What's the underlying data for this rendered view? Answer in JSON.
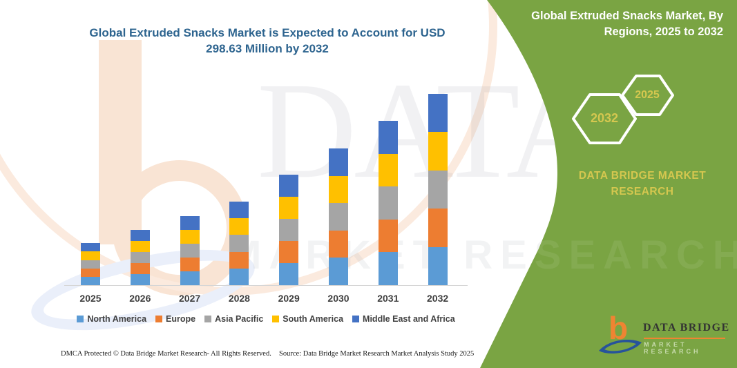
{
  "titles": {
    "left_lines": {
      "l1": "Global Extruded Snacks Market is Expected to Account for USD",
      "l2": "298.63 Million by 2032"
    },
    "right_lines": {
      "l1": "Global Extruded Snacks Market, By",
      "l2": "Regions, 2025 to 2032"
    }
  },
  "side_panel": {
    "hexagon_back_label": "2032",
    "hexagon_front_label": "2025",
    "brand_line1": "DATA BRIDGE MARKET",
    "brand_line2": "RESEARCH"
  },
  "watermarks": {
    "top_text": "DATA BRI",
    "middle_text": "MARKET RESEARCH"
  },
  "chart_data": {
    "type": "bar",
    "stacked": true,
    "title": "Global Extruded Snacks Market is Expected to Account for USD 298.63 Million by 2032",
    "unit": "USD Million",
    "categories": [
      "2025",
      "2026",
      "2027",
      "2028",
      "2029",
      "2030",
      "2031",
      "2032"
    ],
    "series": [
      {
        "name": "North America",
        "color": "#5B9BD5",
        "values": [
          13.1,
          17.2,
          21.6,
          26.1,
          34.5,
          42.7,
          51.3,
          59.7
        ]
      },
      {
        "name": "Europe",
        "color": "#ED7D31",
        "values": [
          13.1,
          17.2,
          21.6,
          26.1,
          34.5,
          42.7,
          51.3,
          59.7
        ]
      },
      {
        "name": "Asia Pacific",
        "color": "#A5A5A5",
        "values": [
          13.1,
          17.2,
          21.6,
          26.1,
          34.5,
          42.7,
          51.3,
          59.7
        ]
      },
      {
        "name": "South America",
        "color": "#FFC000",
        "values": [
          13.1,
          17.2,
          21.6,
          26.1,
          34.5,
          42.7,
          51.3,
          59.7
        ]
      },
      {
        "name": "Middle East and Africa",
        "color": "#4472C4",
        "values": [
          13.1,
          17.2,
          21.6,
          26.1,
          34.5,
          42.7,
          51.3,
          59.83
        ]
      }
    ],
    "totals_estimated": [
      65.5,
      86.0,
      108.0,
      130.5,
      172.5,
      213.5,
      256.5,
      298.63
    ],
    "ylim": [
      0,
      320
    ],
    "gridlines": false,
    "axis_labels_shown": "x-only",
    "legend_position": "bottom",
    "note": "Segment values estimated from bar pixel heights; 2032 total anchored to 298.63 stated in title"
  },
  "footer": {
    "left": "DMCA Protected © Data Bridge Market Research-  All Rights Reserved.",
    "right": "Source: Data Bridge Market Research  Market Analysis Study 2025"
  },
  "logo": {
    "b_glyph": "b",
    "name": "DATA BRIDGE",
    "tagline": "MARKET RESEARCH"
  },
  "colors": {
    "panel_green": "#7aa443",
    "title_blue": "#2d648f",
    "gold": "#d5c74f",
    "white": "#ffffff",
    "axis_text": "#3f3f3f",
    "axis_line": "#d6d6d6"
  }
}
